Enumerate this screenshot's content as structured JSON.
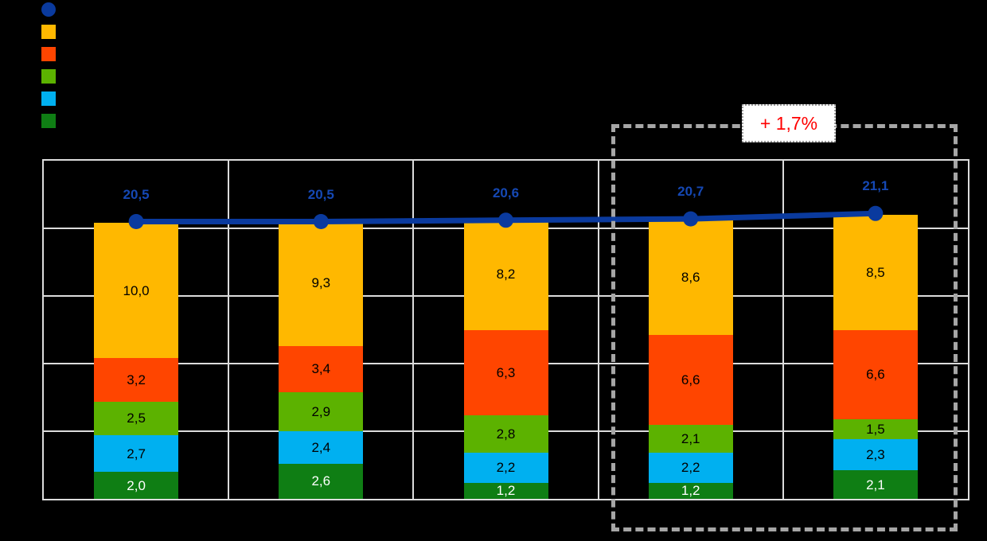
{
  "background": "#000000",
  "legend": {
    "items": [
      {
        "name": "total-line",
        "marker": "circle",
        "color": "#0A3A9E"
      },
      {
        "name": "series-yellow",
        "marker": "square",
        "color": "#FFB800"
      },
      {
        "name": "series-orange",
        "marker": "square",
        "color": "#FF4500"
      },
      {
        "name": "series-green",
        "marker": "square",
        "color": "#5CB200"
      },
      {
        "name": "series-light-blue",
        "marker": "square",
        "color": "#00B0F0"
      },
      {
        "name": "series-dark-green",
        "marker": "square",
        "color": "#0F7E14"
      }
    ]
  },
  "annotation": {
    "text": "+ 1,7%",
    "color": "#FF0000"
  },
  "chart_data": {
    "type": "bar",
    "subtype": "stacked-bars-with-total-line",
    "n_categories": 5,
    "ylim": [
      0,
      25
    ],
    "grid": {
      "y_ticks": [
        5,
        10,
        15,
        20
      ],
      "vertical_separators": true,
      "color": "#DCDCDC"
    },
    "series": [
      {
        "name": "dark-green",
        "color": "#0F7E14",
        "label_color": "#FFFFFF",
        "values": [
          2.0,
          2.6,
          1.2,
          1.2,
          2.1
        ],
        "labels": [
          "2,0",
          "2,6",
          "1,2",
          "1,2",
          "2,1"
        ]
      },
      {
        "name": "light-blue",
        "color": "#00B0F0",
        "label_color": "#000000",
        "values": [
          2.7,
          2.4,
          2.2,
          2.2,
          2.3
        ],
        "labels": [
          "2,7",
          "2,4",
          "2,2",
          "2,2",
          "2,3"
        ]
      },
      {
        "name": "green",
        "color": "#5CB200",
        "label_color": "#000000",
        "values": [
          2.5,
          2.9,
          2.8,
          2.1,
          1.5
        ],
        "labels": [
          "2,5",
          "2,9",
          "2,8",
          "2,1",
          "1,5"
        ]
      },
      {
        "name": "orange",
        "color": "#FF4500",
        "label_color": "#000000",
        "values": [
          3.2,
          3.4,
          6.3,
          6.6,
          6.6
        ],
        "labels": [
          "3,2",
          "3,4",
          "6,3",
          "6,6",
          "6,6"
        ]
      },
      {
        "name": "yellow",
        "color": "#FFB800",
        "label_color": "#000000",
        "values": [
          10.0,
          9.3,
          8.2,
          8.6,
          8.5
        ],
        "labels": [
          "10,0",
          "9,3",
          "8,2",
          "8,6",
          "8,5"
        ]
      }
    ],
    "line": {
      "name": "total",
      "color": "#0A3A9E",
      "label_color": "#1548B4",
      "values": [
        20.5,
        20.5,
        20.6,
        20.7,
        21.1
      ],
      "labels": [
        "20,5",
        "20,5",
        "20,6",
        "20,7",
        "21,1"
      ]
    },
    "highlighted_categories": [
      3,
      4
    ]
  }
}
